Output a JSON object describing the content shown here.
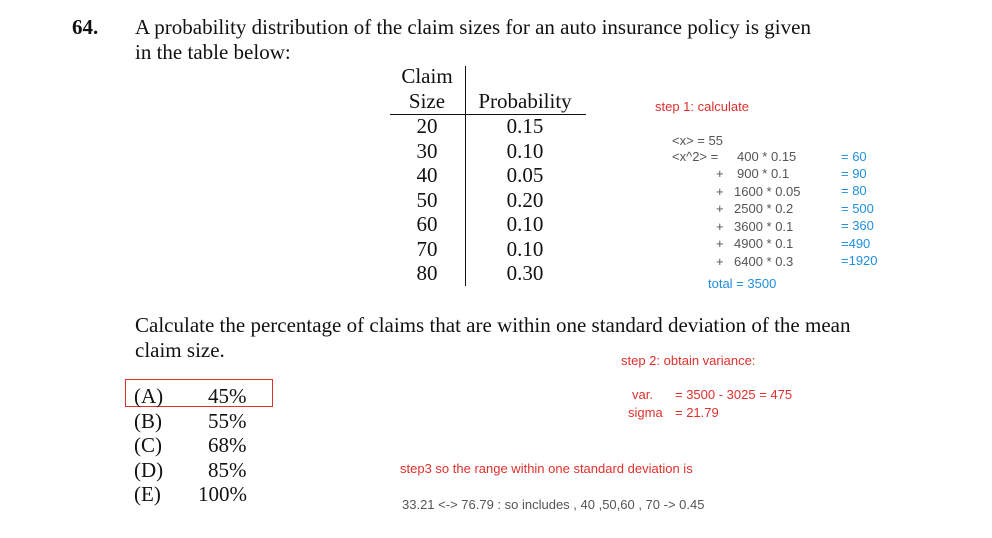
{
  "question": {
    "number": "64.",
    "line1": "A probability distribution of the claim sizes for an auto insurance policy is given",
    "line2": "in the table below:",
    "ask_line1": "Calculate the percentage of claims that are within one standard deviation of the mean",
    "ask_line2": "claim size."
  },
  "table": {
    "header_size_1": "Claim",
    "header_size_2": "Size",
    "header_prob": "Probability",
    "rows": [
      {
        "size": "20",
        "prob": "0.15"
      },
      {
        "size": "30",
        "prob": "0.10"
      },
      {
        "size": "40",
        "prob": "0.05"
      },
      {
        "size": "50",
        "prob": "0.20"
      },
      {
        "size": "60",
        "prob": "0.10"
      },
      {
        "size": "70",
        "prob": "0.10"
      },
      {
        "size": "80",
        "prob": "0.30"
      }
    ]
  },
  "choices": [
    {
      "letter": "(A)",
      "value": "45%"
    },
    {
      "letter": "(B)",
      "value": "55%"
    },
    {
      "letter": "(C)",
      "value": "68%"
    },
    {
      "letter": "(D)",
      "value": "85%"
    },
    {
      "letter": "(E)",
      "value": "100%"
    }
  ],
  "notes": {
    "step1": "step 1: calculate",
    "mean": "<x> = 55",
    "x2_label": "<x^2> =",
    "products": [
      "400 * 0.15",
      "900 * 0.1",
      "1600 * 0.05",
      "2500 * 0.2",
      "3600 * 0.1",
      "4900 * 0.1",
      "6400 * 0.3"
    ],
    "plus": "+",
    "results": [
      "= 60",
      "= 90",
      "= 80",
      "= 500",
      "= 360",
      "=490",
      "=1920"
    ],
    "total": "total = 3500",
    "step2": "step 2: obtain variance:",
    "var_label": "var.",
    "var_value": "= 3500 - 3025 = 475",
    "sigma_label": "sigma",
    "sigma_value": "= 21.79",
    "step3": "step3 so the range within one standard deviation is",
    "range": "33.21 <-> 76.79 : so includes , 40 ,50,60 , 70 -> 0.45"
  },
  "colors": {
    "red": "#e0302c",
    "blue": "#1f8fe0",
    "text": "#111111",
    "gray": "#555555"
  }
}
